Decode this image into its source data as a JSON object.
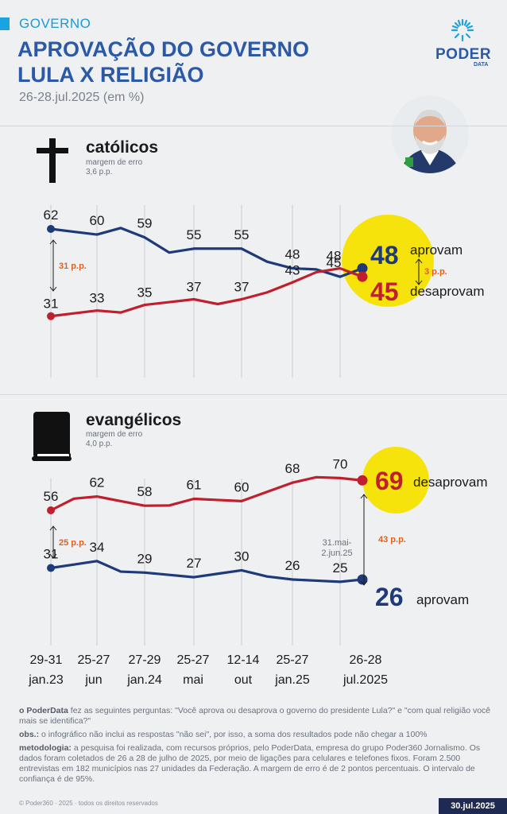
{
  "header": {
    "kicker": "GOVERNO",
    "title_line1": "APROVAÇÃO DO GOVERNO",
    "title_line2": "LULA X RELIGIÃO",
    "subtitle": "26-28.jul.2025 (em %)",
    "logo_word": "PODER",
    "logo_sub": "DATA"
  },
  "sections": {
    "catolicos": {
      "title": "católicos",
      "margin_label": "margem de erro",
      "margin_value": "3,6 p.p."
    },
    "evangelicos": {
      "title": "evangélicos",
      "margin_label": "margem de erro",
      "margin_value": "4,0 p.p."
    }
  },
  "chart_data": [
    {
      "type": "line",
      "title": "católicos",
      "x": [
        "29-31 jan.23",
        "25-27 jun",
        "27-29 jan.24",
        "25-27 mai",
        "12-14 out",
        "25-27 jan.25",
        "31.mai-2.jun.25",
        "26-28 jul.2025"
      ],
      "series": [
        {
          "name": "aprovam",
          "color": "#1e3a78",
          "values": [
            62,
            60,
            59,
            55,
            55,
            48,
            45,
            48
          ]
        },
        {
          "name": "desaprovam",
          "color": "#c0202e",
          "values": [
            31,
            33,
            35,
            37,
            37,
            43,
            48,
            45
          ]
        }
      ],
      "annotations": {
        "start_gap": "31 p.p.",
        "end_gap": "3 p.p."
      },
      "ylim": [
        20,
        70
      ]
    },
    {
      "type": "line",
      "title": "evangélicos",
      "x": [
        "29-31 jan.23",
        "25-27 jun",
        "27-29 jan.24",
        "25-27 mai",
        "12-14 out",
        "25-27 jan.25",
        "31.mai-2.jun.25",
        "26-28 jul.2025"
      ],
      "series": [
        {
          "name": "desaprovam",
          "color": "#c0202e",
          "values": [
            56,
            62,
            58,
            61,
            60,
            68,
            70,
            69
          ]
        },
        {
          "name": "aprovam",
          "color": "#1e3a78",
          "values": [
            31,
            34,
            29,
            27,
            30,
            26,
            25,
            26
          ]
        }
      ],
      "annotations": {
        "start_gap": "25 p.p.",
        "end_gap": "43 p.p.",
        "period_note": "31.mai-\n2.jun.25"
      },
      "ylim": [
        20,
        75
      ]
    }
  ],
  "x_axis": [
    {
      "line1": "29-31",
      "line2": "jan.23"
    },
    {
      "line1": "25-27",
      "line2": "jun"
    },
    {
      "line1": "27-29",
      "line2": "jan.24"
    },
    {
      "line1": "25-27",
      "line2": "mai"
    },
    {
      "line1": "12-14",
      "line2": "out"
    },
    {
      "line1": "25-27",
      "line2": "jan.25"
    },
    {
      "line1": "26-28",
      "line2": "jul.2025"
    }
  ],
  "notes": {
    "q_brand": "o PoderData",
    "q_text": " fez as seguintes perguntas: \"Você aprova ou desaprova o governo do presidente Lula?\" e \"com qual religião você mais se identifica?\"",
    "obs_label": "obs.:",
    "obs_text": " o infográfico não inclui as respostas \"não sei\", por isso, a soma dos resultados pode não chegar a 100%",
    "met_label": "metodologia:",
    "met_text": " a pesquisa foi realizada, com recursos próprios, pelo PoderData, empresa do grupo Poder360 Jornalismo. Os dados foram coletados de 26 a 28 de julho de 2025, por meio de ligações para celulares e telefones fixos. Foram 2.500 entrevistas em 182 municípios nas 27 unidades da Federação. A margem de erro é de 2 pontos percentuais. O intervalo de confiança é de 95%.",
    "copyright": "© Poder360 · 2025 · todos os direitos reservados",
    "date": "30.jul.2025"
  },
  "colors": {
    "navy": "#1e3a78",
    "red": "#c0202e",
    "yellow": "#f6e30c",
    "blue": "#2b59a8"
  }
}
